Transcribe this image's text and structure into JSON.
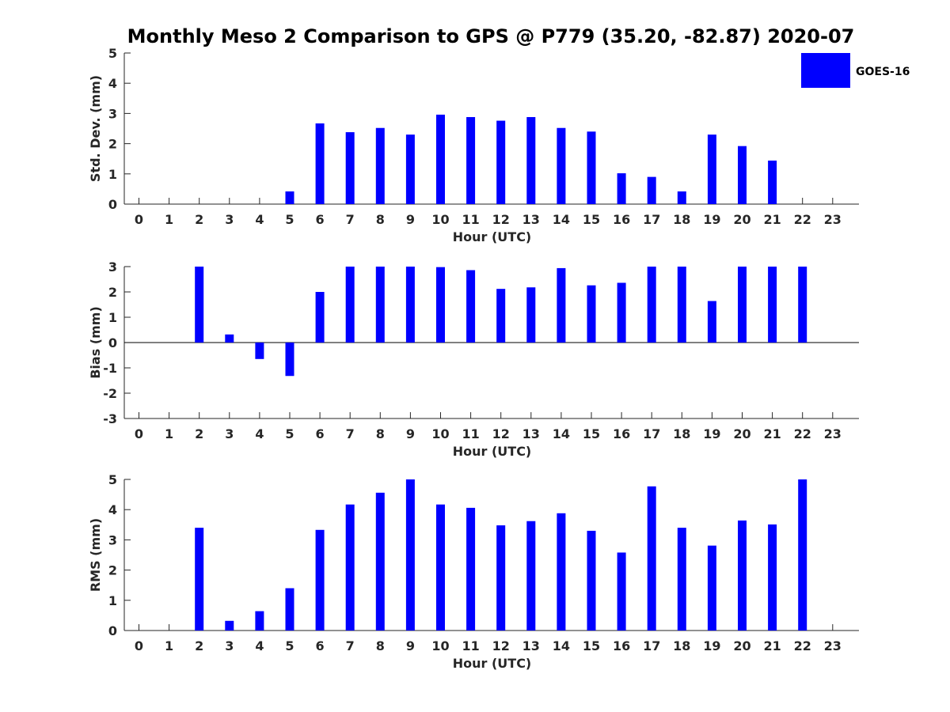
{
  "title": "Monthly Meso 2 Comparison to GPS @ P779 (35.20, -82.87) 2020-07",
  "legend": {
    "label": "GOES-16",
    "color": "#0000ff",
    "placement": "top-right"
  },
  "chart_data": [
    {
      "type": "bar",
      "xlabel": "Hour (UTC)",
      "ylabel": "Std. Dev. (mm)",
      "ylim": [
        0,
        5
      ],
      "yticks": [
        0,
        1,
        2,
        3,
        4,
        5
      ],
      "categories": [
        "0",
        "1",
        "2",
        "3",
        "4",
        "5",
        "6",
        "7",
        "8",
        "9",
        "10",
        "11",
        "12",
        "13",
        "14",
        "15",
        "16",
        "17",
        "18",
        "19",
        "20",
        "21",
        "22",
        "23"
      ],
      "series": [
        {
          "name": "GOES-16",
          "color": "#0000ff",
          "values": [
            null,
            null,
            null,
            null,
            null,
            0.42,
            2.67,
            2.38,
            2.52,
            2.3,
            2.96,
            2.88,
            2.76,
            2.88,
            2.52,
            2.4,
            1.02,
            0.9,
            0.42,
            2.3,
            1.92,
            1.44,
            null,
            null
          ]
        }
      ]
    },
    {
      "type": "bar",
      "xlabel": "Hour (UTC)",
      "ylabel": "Bias (mm)",
      "ylim": [
        -3,
        3
      ],
      "yticks": [
        -3,
        -2,
        -1,
        0,
        1,
        2,
        3
      ],
      "categories": [
        "0",
        "1",
        "2",
        "3",
        "4",
        "5",
        "6",
        "7",
        "8",
        "9",
        "10",
        "11",
        "12",
        "13",
        "14",
        "15",
        "16",
        "17",
        "18",
        "19",
        "20",
        "21",
        "22",
        "23"
      ],
      "series": [
        {
          "name": "GOES-16",
          "color": "#0000ff",
          "values": [
            null,
            null,
            3.0,
            0.32,
            -0.65,
            -1.32,
            2.0,
            3.0,
            3.0,
            3.0,
            2.98,
            2.86,
            2.12,
            2.18,
            2.94,
            2.26,
            2.36,
            3.0,
            3.0,
            1.64,
            3.0,
            3.0,
            3.0,
            null
          ]
        }
      ]
    },
    {
      "type": "bar",
      "xlabel": "Hour (UTC)",
      "ylabel": "RMS (mm)",
      "ylim": [
        0,
        5
      ],
      "yticks": [
        0,
        1,
        2,
        3,
        4,
        5
      ],
      "categories": [
        "0",
        "1",
        "2",
        "3",
        "4",
        "5",
        "6",
        "7",
        "8",
        "9",
        "10",
        "11",
        "12",
        "13",
        "14",
        "15",
        "16",
        "17",
        "18",
        "19",
        "20",
        "21",
        "22",
        "23"
      ],
      "series": [
        {
          "name": "GOES-16",
          "color": "#0000ff",
          "values": [
            null,
            null,
            3.4,
            0.32,
            0.64,
            1.4,
            3.33,
            4.17,
            4.56,
            5.0,
            4.17,
            4.06,
            3.48,
            3.62,
            3.88,
            3.3,
            2.58,
            4.77,
            3.4,
            2.81,
            3.64,
            3.51,
            5.0,
            null
          ]
        }
      ]
    }
  ]
}
